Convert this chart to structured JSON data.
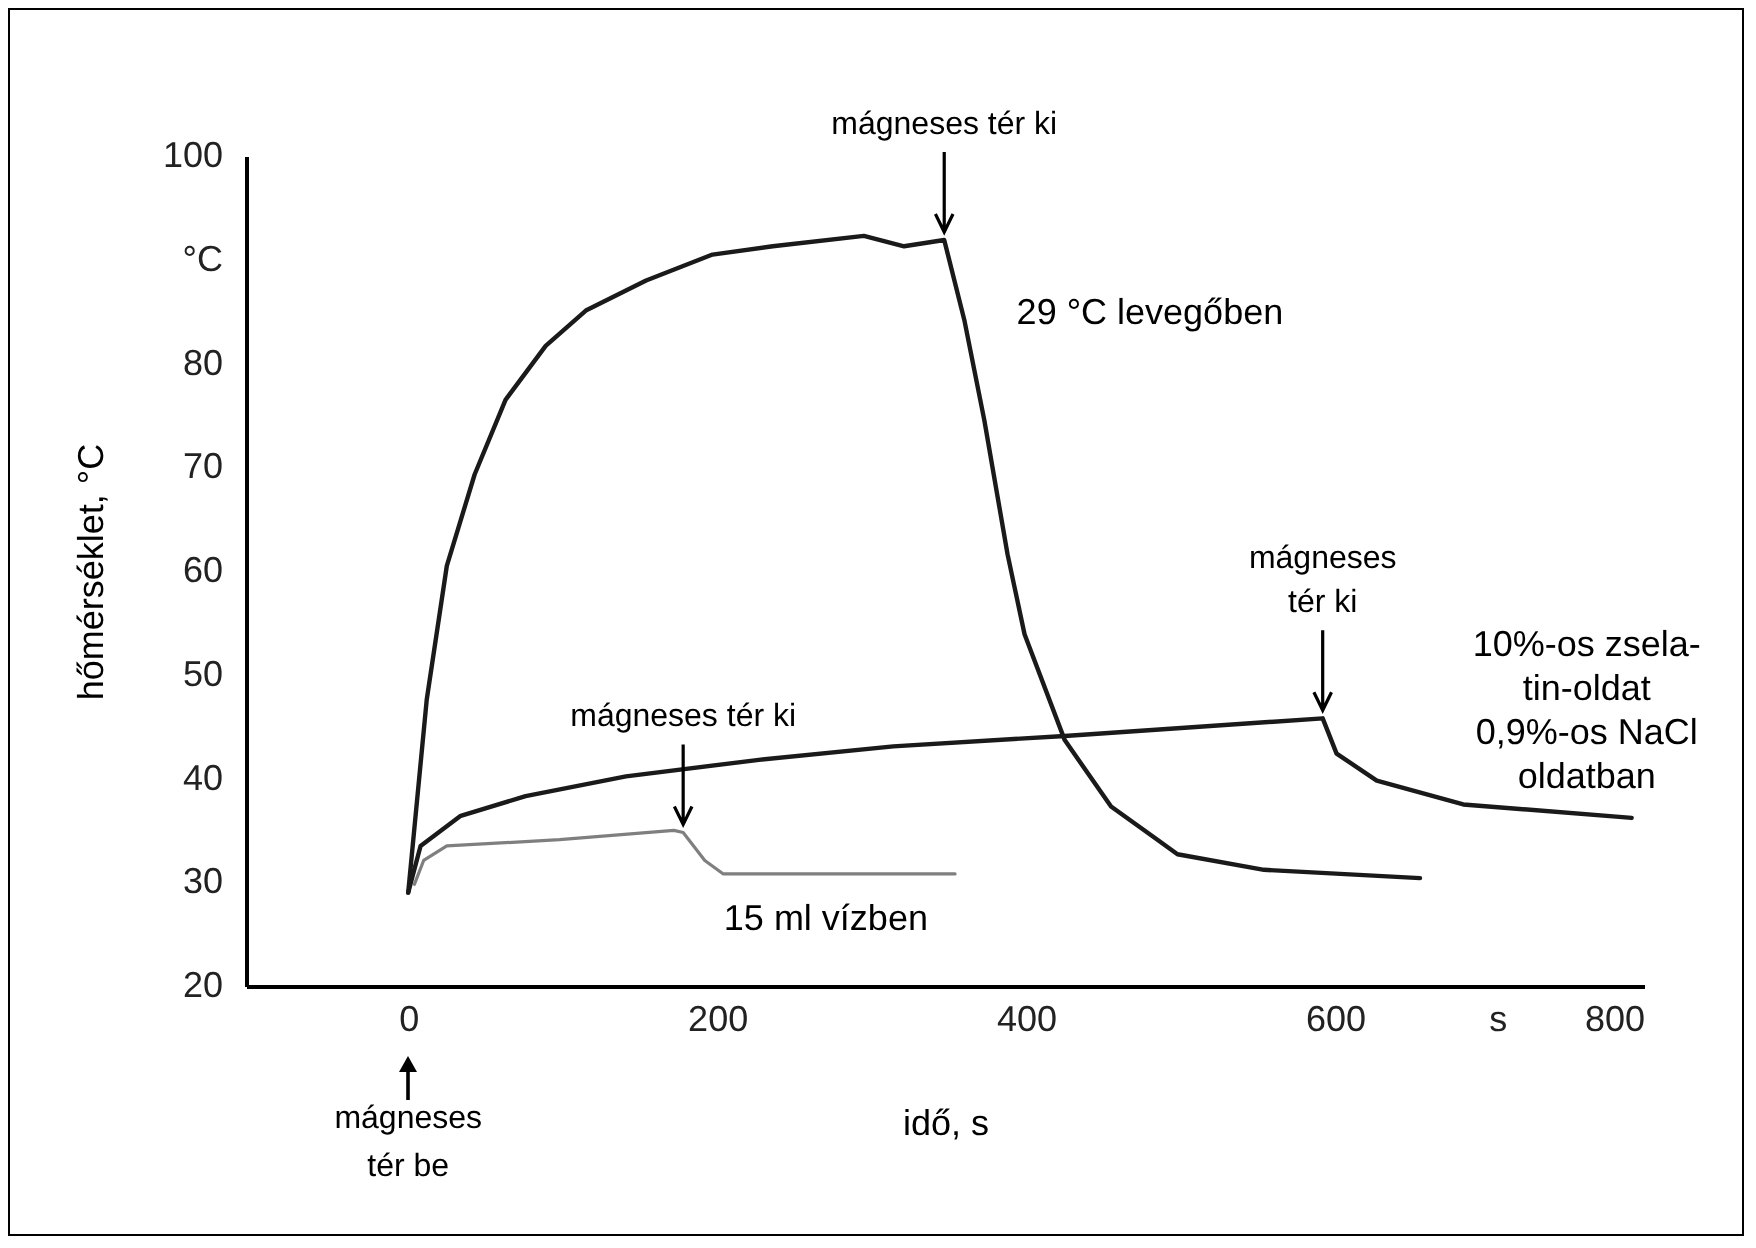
{
  "chart_data": {
    "type": "line",
    "xlabel": "idő, s",
    "ylabel": "hőmérséklet, °C",
    "xlim": [
      -105,
      800
    ],
    "ylim": [
      20,
      100
    ],
    "xticks": [
      0,
      200,
      400,
      600,
      {
        "value": 705,
        "label": "s"
      },
      800
    ],
    "yticks": [
      20,
      30,
      40,
      50,
      60,
      70,
      80,
      {
        "value": 90,
        "label": "°C"
      },
      100
    ],
    "grid": false,
    "legend": false,
    "marker": "none",
    "line_style": "solid",
    "series": [
      {
        "name": "29 °C levegőben",
        "color": "#1a1a1a",
        "x": [
          0,
          12,
          25,
          43,
          63,
          89,
          115,
          154,
          197,
          236,
          295,
          321,
          347,
          360,
          373,
          388,
          399,
          425,
          455,
          485,
          498,
          554,
          655
        ],
        "values": [
          29,
          47.6,
          60.5,
          69.3,
          76.5,
          81.7,
          85.1,
          88.0,
          90.5,
          91.3,
          92.3,
          91.3,
          91.9,
          84.2,
          74.5,
          61.6,
          53.9,
          43.7,
          37.3,
          34.1,
          32.7,
          31.2,
          30.4
        ]
      },
      {
        "name": "10%-os zsela-\ntin-oldat\n0,9%-os NaCl\noldatban",
        "color": "#1a1a1a",
        "x": [
          0,
          8,
          34,
          76,
          141,
          227,
          314,
          425,
          592,
          601,
          627,
          683,
          792
        ],
        "values": [
          29,
          33.5,
          36.4,
          38.3,
          40.2,
          41.8,
          43.1,
          44.1,
          45.8,
          42.4,
          39.8,
          37.5,
          36.2
        ]
      },
      {
        "name": "15 ml vízben",
        "color": "#7f7f7f",
        "x": [
          4,
          10,
          25,
          98,
          172,
          178,
          192,
          204,
          270,
          354
        ],
        "values": [
          29.8,
          32.1,
          33.5,
          34.1,
          35.0,
          34.8,
          32.1,
          30.8,
          30.8,
          30.8
        ]
      }
    ],
    "annotations": [
      {
        "text": "mágneses tér ki",
        "x": 347,
        "y": 91.9
      },
      {
        "text": "mágneses tér ki",
        "x": 178,
        "y": 34.8
      },
      {
        "text": "mágneses\ntér ki",
        "x": 592,
        "y": 45.8
      },
      "mágneses\ntér be"
    ]
  }
}
